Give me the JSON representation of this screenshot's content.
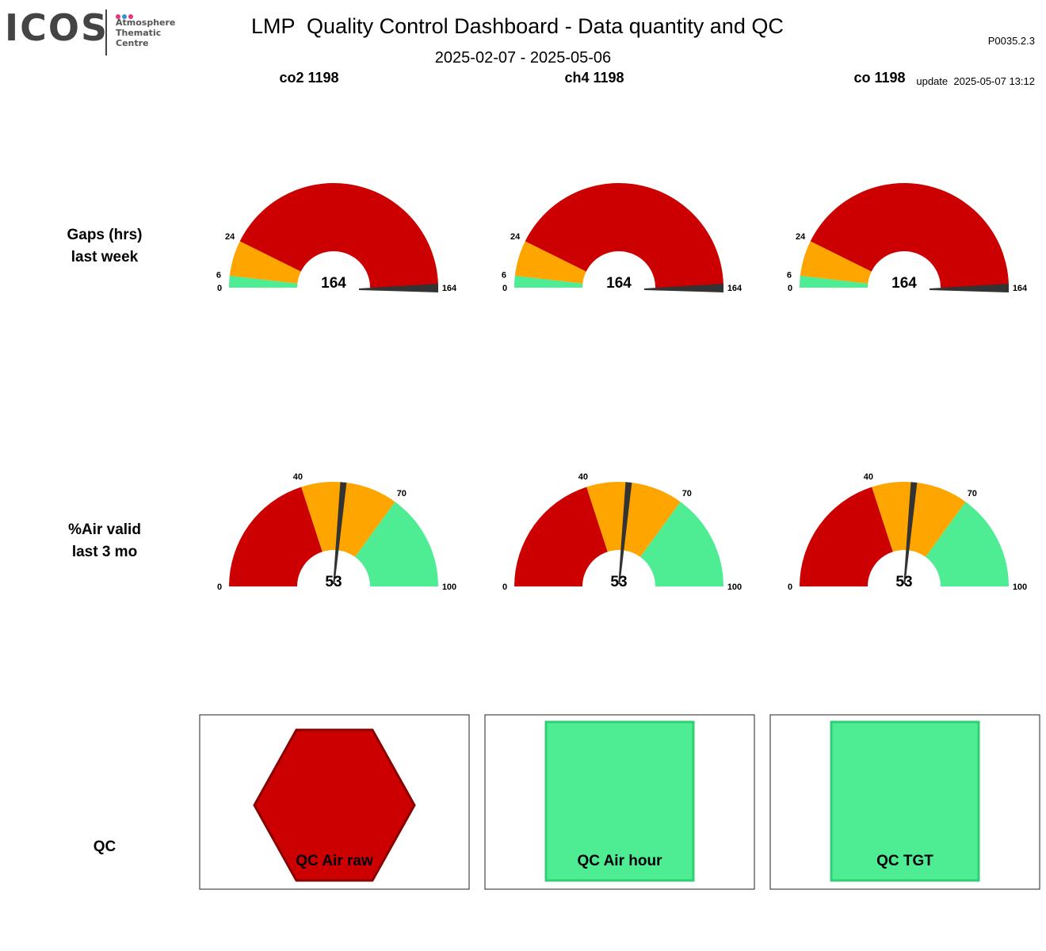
{
  "header": {
    "logo_text": "ICOS",
    "logo_subtitle_1": "Atmosphere",
    "logo_subtitle_2": "Thematic",
    "logo_subtitle_3": "Centre",
    "logo_dot_colors": [
      "#e0367a",
      "#3a8fd9",
      "#e0367a"
    ],
    "title": "LMP  Quality Control Dashboard - Data quantity and QC",
    "date_range": "2025-02-07 - 2025-05-06",
    "version": "P0035.2.3",
    "update": "update  2025-05-07 13:12"
  },
  "colors": {
    "red": "#cc0000",
    "orange": "#ffa500",
    "green": "#4eec93",
    "needle": "#333333"
  },
  "columns": [
    "co2 1198",
    "ch4 1198",
    "co 1198"
  ],
  "rows": {
    "gaps": {
      "label_1": "Gaps (hrs)",
      "label_2": "last week"
    },
    "air_valid": {
      "label_1": "%Air valid",
      "label_2": "last 3 mo"
    },
    "qc": {
      "label": "QC"
    }
  },
  "gauges": {
    "gaps": {
      "min": 0,
      "max": 164,
      "bands": [
        {
          "from": 0,
          "to": 6,
          "color": "green"
        },
        {
          "from": 6,
          "to": 24,
          "color": "orange"
        },
        {
          "from": 24,
          "to": 164,
          "color": "red"
        }
      ],
      "ticks": [
        0,
        6,
        24,
        164
      ],
      "values": [
        164,
        164,
        164
      ]
    },
    "air_valid": {
      "min": 0,
      "max": 100,
      "bands": [
        {
          "from": 0,
          "to": 40,
          "color": "red"
        },
        {
          "from": 40,
          "to": 70,
          "color": "orange"
        },
        {
          "from": 70,
          "to": 100,
          "color": "green"
        }
      ],
      "ticks": [
        0,
        40,
        70,
        100
      ],
      "values": [
        53,
        53,
        53
      ]
    }
  },
  "qc_panels": [
    {
      "label": "QC Air raw",
      "status": "fail",
      "shape": "hexagon",
      "color": "red"
    },
    {
      "label": "QC Air hour",
      "status": "pass",
      "shape": "square",
      "color": "green"
    },
    {
      "label": "QC TGT",
      "status": "pass",
      "shape": "square",
      "color": "green"
    }
  ]
}
